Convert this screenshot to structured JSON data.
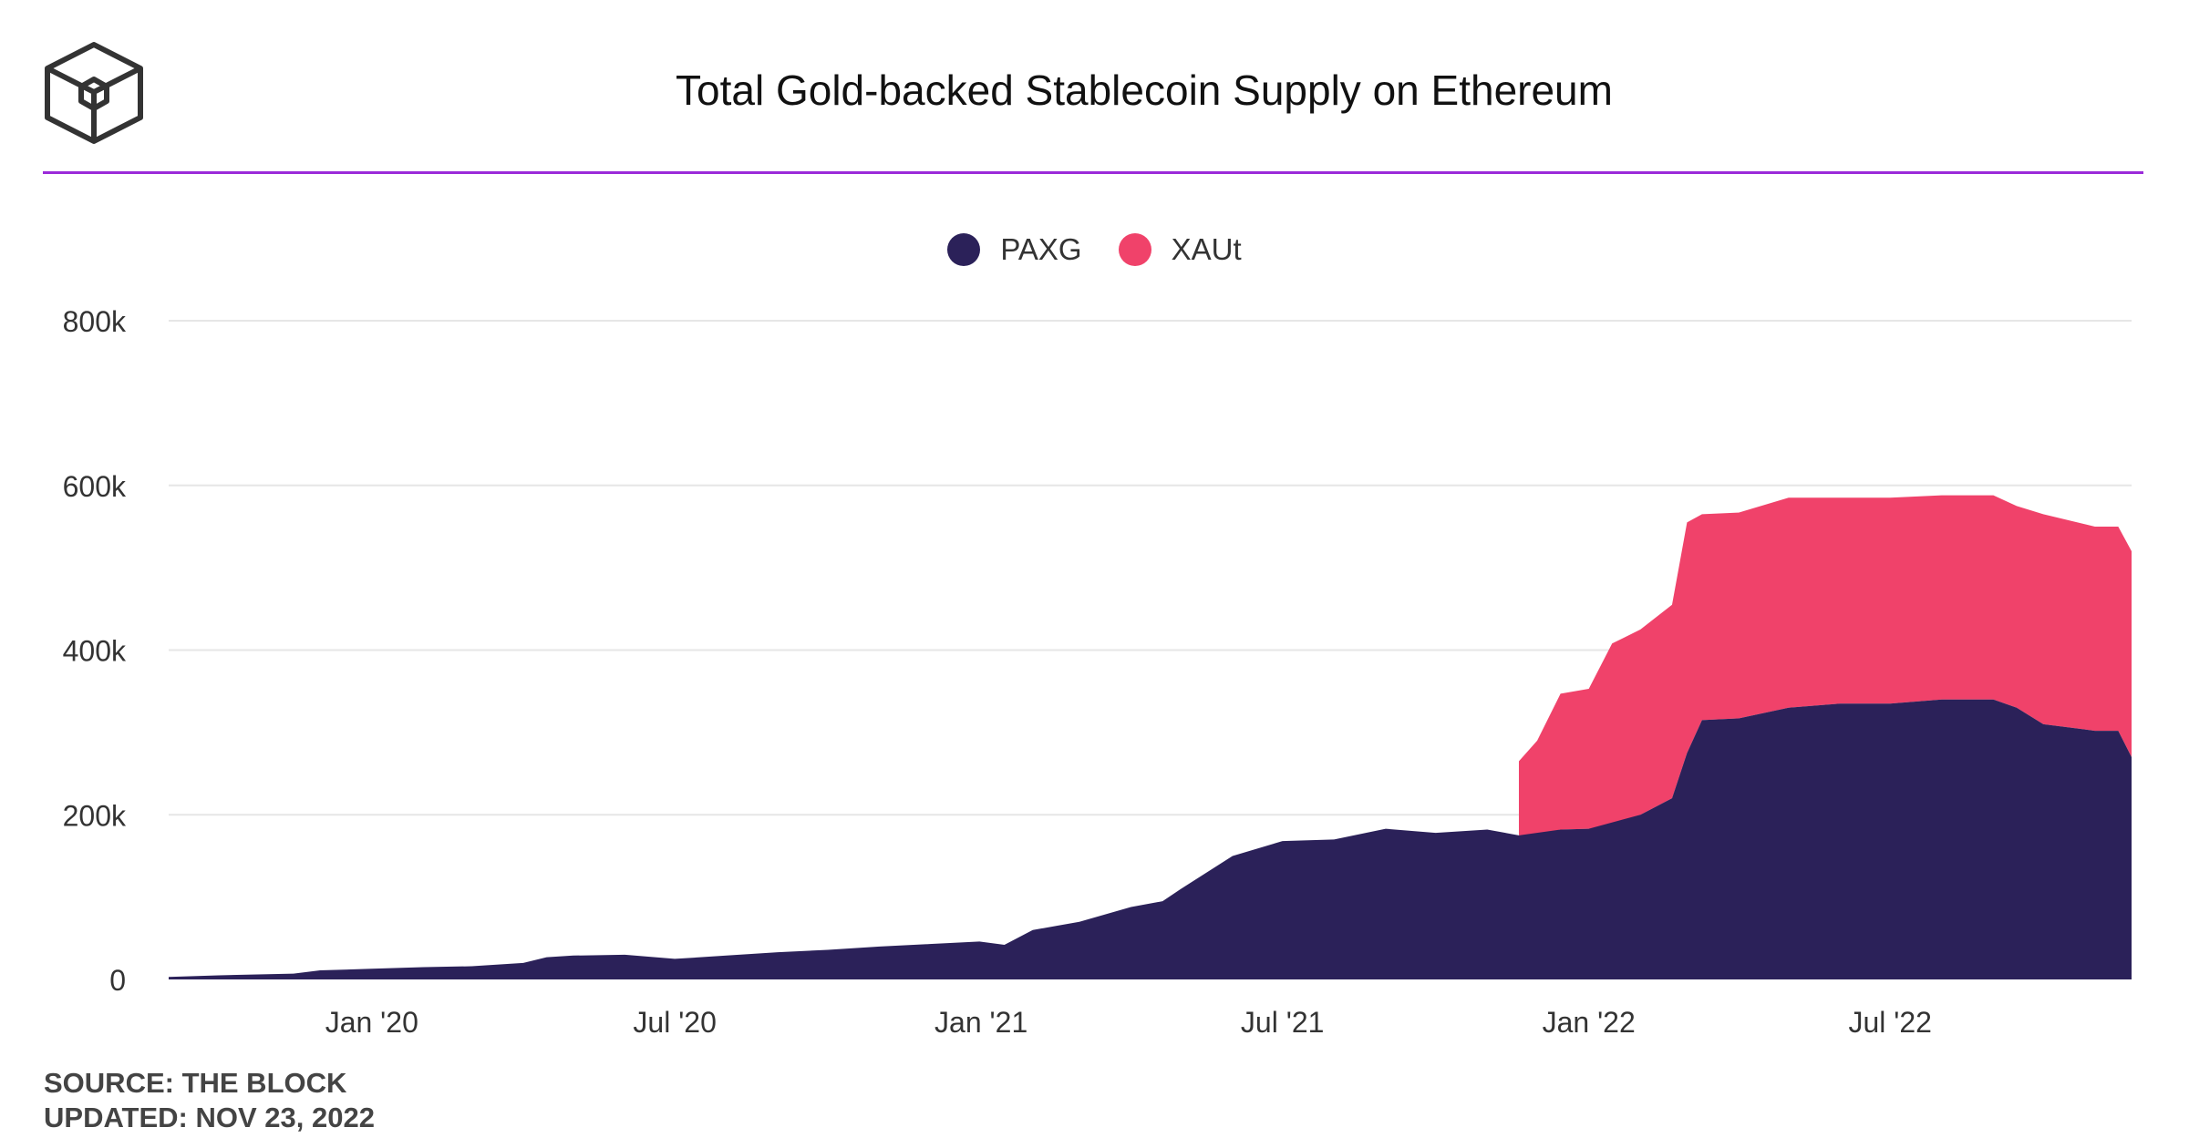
{
  "header": {
    "title": "Total Gold-backed Stablecoin Supply on Ethereum"
  },
  "footer": {
    "source": "SOURCE: THE BLOCK",
    "updated": "UPDATED: NOV 23, 2022"
  },
  "colors": {
    "paxg": "#2b2159",
    "xaut": "#f0426a",
    "accent": "#9b2bd9",
    "grid": "#e6e6e6"
  },
  "chart_data": {
    "type": "area",
    "stacked": true,
    "title": "Total Gold-backed Stablecoin Supply on Ethereum",
    "xlabel": "",
    "ylabel": "",
    "ylim": [
      0,
      800000
    ],
    "y_ticks": [
      0,
      200000,
      400000,
      600000,
      800000
    ],
    "y_tick_labels": [
      "0",
      "200k",
      "400k",
      "600k",
      "800k"
    ],
    "x_range": [
      "2019-09-01",
      "2022-11-23"
    ],
    "x_ticks": [
      "2020-01-01",
      "2020-07-01",
      "2021-01-01",
      "2021-07-01",
      "2022-01-01",
      "2022-07-01"
    ],
    "x_tick_labels": [
      "Jan '20",
      "Jul '20",
      "Jan '21",
      "Jul '21",
      "Jan '22",
      "Jul '22"
    ],
    "grid": true,
    "legend": "top-center",
    "series": [
      {
        "name": "PAXG",
        "x": [
          "2019-09-01",
          "2019-10-01",
          "2019-11-15",
          "2019-12-01",
          "2020-01-01",
          "2020-02-01",
          "2020-03-01",
          "2020-04-01",
          "2020-04-15",
          "2020-05-01",
          "2020-06-01",
          "2020-07-01",
          "2020-08-01",
          "2020-09-01",
          "2020-10-01",
          "2020-11-01",
          "2020-12-01",
          "2020-12-31",
          "2021-01-15",
          "2021-02-01",
          "2021-03-01",
          "2021-04-01",
          "2021-04-20",
          "2021-05-01",
          "2021-06-01",
          "2021-07-01",
          "2021-08-01",
          "2021-09-01",
          "2021-10-01",
          "2021-11-01",
          "2021-11-20",
          "2021-12-15",
          "2022-01-01",
          "2022-02-01",
          "2022-02-20",
          "2022-03-01",
          "2022-03-10",
          "2022-04-01",
          "2022-05-01",
          "2022-06-01",
          "2022-07-01",
          "2022-08-01",
          "2022-09-01",
          "2022-09-15",
          "2022-10-01",
          "2022-11-01",
          "2022-11-15",
          "2022-11-23"
        ],
        "values": [
          3000,
          5000,
          7000,
          11000,
          13000,
          15000,
          16000,
          20000,
          27000,
          29000,
          30000,
          25000,
          29000,
          33000,
          36000,
          40000,
          43000,
          46000,
          42000,
          60000,
          70000,
          88000,
          95000,
          110000,
          150000,
          168000,
          170000,
          183000,
          178000,
          182000,
          175000,
          182000,
          183000,
          200000,
          220000,
          275000,
          315000,
          317000,
          330000,
          335000,
          335000,
          340000,
          340000,
          330000,
          310000,
          302000,
          302000,
          270000
        ]
      },
      {
        "name": "XAUt",
        "x": [
          "2021-11-20",
          "2021-12-01",
          "2021-12-15",
          "2022-01-01",
          "2022-01-15",
          "2022-02-01",
          "2022-02-20",
          "2022-03-01",
          "2022-03-10",
          "2022-04-01",
          "2022-05-01",
          "2022-06-01",
          "2022-07-01",
          "2022-08-01",
          "2022-09-01",
          "2022-09-15",
          "2022-10-01",
          "2022-11-01",
          "2022-11-15",
          "2022-11-23"
        ],
        "values": [
          90000,
          115000,
          165000,
          170000,
          225000,
          225000,
          235000,
          280000,
          250000,
          250000,
          255000,
          250000,
          250000,
          248000,
          248000,
          245000,
          255000,
          248000,
          248000,
          250000
        ]
      }
    ]
  }
}
